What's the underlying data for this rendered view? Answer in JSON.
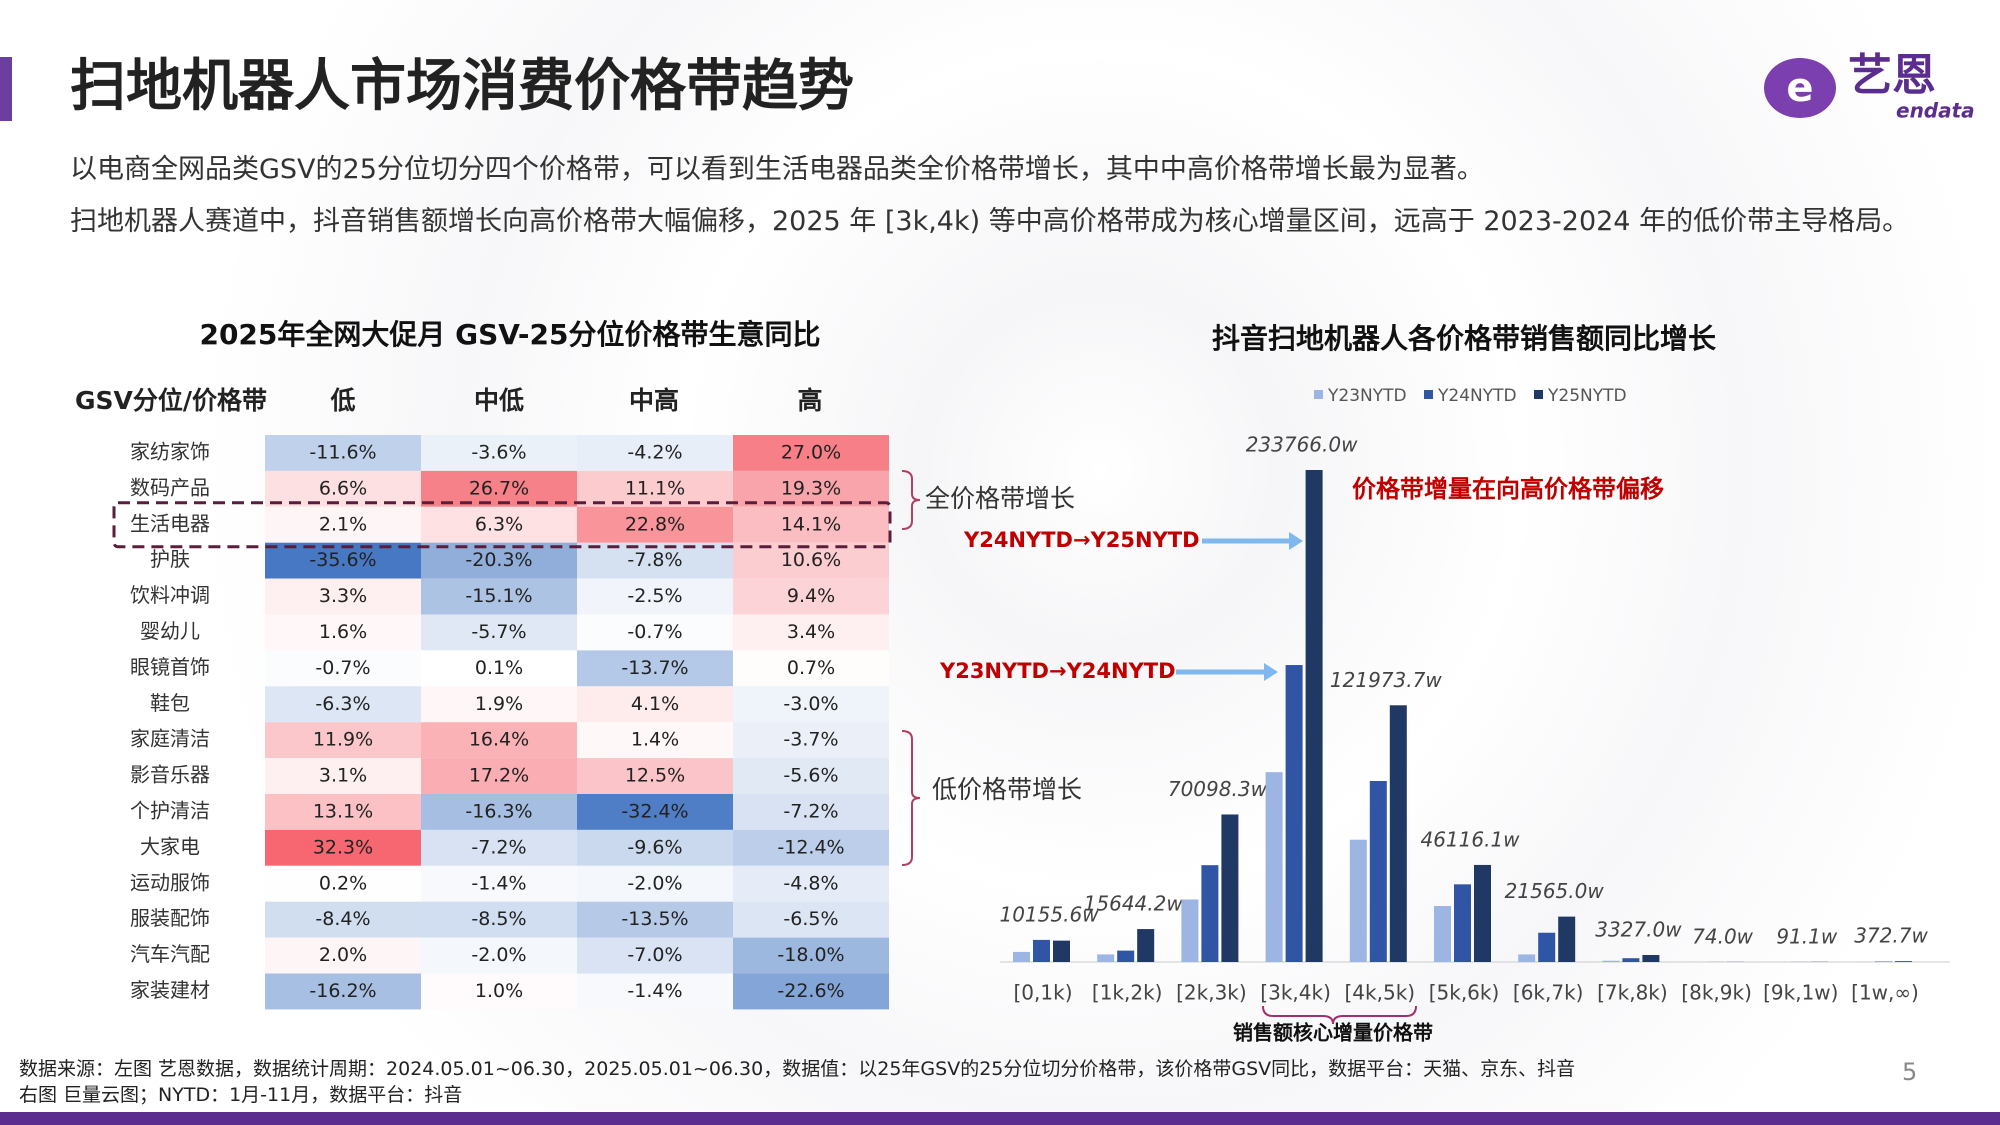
{
  "header": {
    "title": "扫地机器人市场消费价格带趋势",
    "paragraphs": [
      "以电商全网品类GSV的25分位切分四个价格带，可以看到生活电器品类全价格带增长，其中中高价格带增长最为显著。",
      "扫地机器人赛道中，抖音销售额增长向高价格带大幅偏移，2025 年 [3k,4k) 等中高价格带成为核心增量区间，远高于 2023-2024 年的低价带主导格局。"
    ]
  },
  "logo": {
    "name": "艺恩",
    "brand": "endata"
  },
  "table": {
    "title": "2025年全网大促月 GSV-25分位价格带生意同比",
    "columns": [
      "GSV分位/价格带",
      "低",
      "中低",
      "中高",
      "高"
    ],
    "rows": [
      {
        "label": "家纺家饰",
        "cells": [
          "-11.6%",
          "-3.6%",
          "-4.2%",
          "27.0%"
        ]
      },
      {
        "label": "数码产品",
        "cells": [
          "6.6%",
          "26.7%",
          "11.1%",
          "19.3%"
        ]
      },
      {
        "label": "生活电器",
        "cells": [
          "2.1%",
          "6.3%",
          "22.8%",
          "14.1%"
        ]
      },
      {
        "label": "护肤",
        "cells": [
          "-35.6%",
          "-20.3%",
          "-7.8%",
          "10.6%"
        ]
      },
      {
        "label": "饮料冲调",
        "cells": [
          "3.3%",
          "-15.1%",
          "-2.5%",
          "9.4%"
        ]
      },
      {
        "label": "婴幼儿",
        "cells": [
          "1.6%",
          "-5.7%",
          "-0.7%",
          "3.4%"
        ]
      },
      {
        "label": "眼镜首饰",
        "cells": [
          "-0.7%",
          "0.1%",
          "-13.7%",
          "0.7%"
        ]
      },
      {
        "label": "鞋包",
        "cells": [
          "-6.3%",
          "1.9%",
          "4.1%",
          "-3.0%"
        ]
      },
      {
        "label": "家庭清洁",
        "cells": [
          "11.9%",
          "16.4%",
          "1.4%",
          "-3.7%"
        ]
      },
      {
        "label": "影音乐器",
        "cells": [
          "3.1%",
          "17.2%",
          "12.5%",
          "-5.6%"
        ]
      },
      {
        "label": "个护清洁",
        "cells": [
          "13.1%",
          "-16.3%",
          "-32.4%",
          "-7.2%"
        ]
      },
      {
        "label": "大家电",
        "cells": [
          "32.3%",
          "-7.2%",
          "-9.6%",
          "-12.4%"
        ]
      },
      {
        "label": "运动服饰",
        "cells": [
          "0.2%",
          "-1.4%",
          "-2.0%",
          "-4.8%"
        ]
      },
      {
        "label": "服装配饰",
        "cells": [
          "-8.4%",
          "-8.5%",
          "-13.5%",
          "-6.5%"
        ]
      },
      {
        "label": "汽车汽配",
        "cells": [
          "2.0%",
          "-2.0%",
          "-7.0%",
          "-18.0%"
        ]
      },
      {
        "label": "家装建材",
        "cells": [
          "-16.2%",
          "1.0%",
          "-1.4%",
          "-22.6%"
        ]
      }
    ],
    "annotations": [
      "全价格带增长",
      "低价格带增长"
    ]
  },
  "chart_data": {
    "type": "bar",
    "title": "抖音扫地机器人各价格带销售额同比增长",
    "categories": [
      "[0,1k)",
      "[1k,2k)",
      "[2k,3k)",
      "[3k,4k)",
      "[4k,5k)",
      "[5k,6k)",
      "[6k,7k)",
      "[7k,8k)",
      "[8k,9k)",
      "[9k,1w)",
      "[1w,∞)"
    ],
    "series": [
      {
        "name": "Y23NYTD",
        "color": "#9db5e3",
        "values": [
          4800,
          3600,
          29700,
          90200,
          58100,
          26600,
          3600,
          600,
          20,
          30,
          100
        ]
      },
      {
        "name": "Y24NYTD",
        "color": "#2f55a4",
        "values": [
          10500,
          5400,
          46000,
          141100,
          86000,
          36900,
          13900,
          1800,
          40,
          60,
          200
        ]
      },
      {
        "name": "Y25NYTD",
        "color": "#1f3864",
        "values": [
          10155.6,
          15644.2,
          70098.3,
          233766.0,
          121973.7,
          46116.1,
          21565.0,
          3327.0,
          74.0,
          91.1,
          372.7
        ],
        "value_labels": [
          "10155.6w",
          "15644.2w",
          "70098.3w",
          "233766.0w",
          "121973.7w",
          "46116.1w",
          "21565.0w",
          "3327.0w",
          "74.0w",
          "91.1w",
          "372.7w"
        ]
      }
    ],
    "annotations": [
      "价格带增量在向高价格带偏移",
      "Y24NYTD→Y25NYTD",
      "Y23NYTD→Y24NYTD",
      "销售额核心增量价格带"
    ]
  },
  "footer": {
    "notes": [
      "数据来源：左图 艺恩数据，数据统计周期：2024.05.01~06.30，2025.05.01~06.30，数据值：以25年GSV的25分位切分价格带，该价格带GSV同比，数据平台：天猫、京东、抖音",
      "右图 巨量云图；NYTD：1月-11月，数据平台：抖音"
    ],
    "page": 5
  }
}
